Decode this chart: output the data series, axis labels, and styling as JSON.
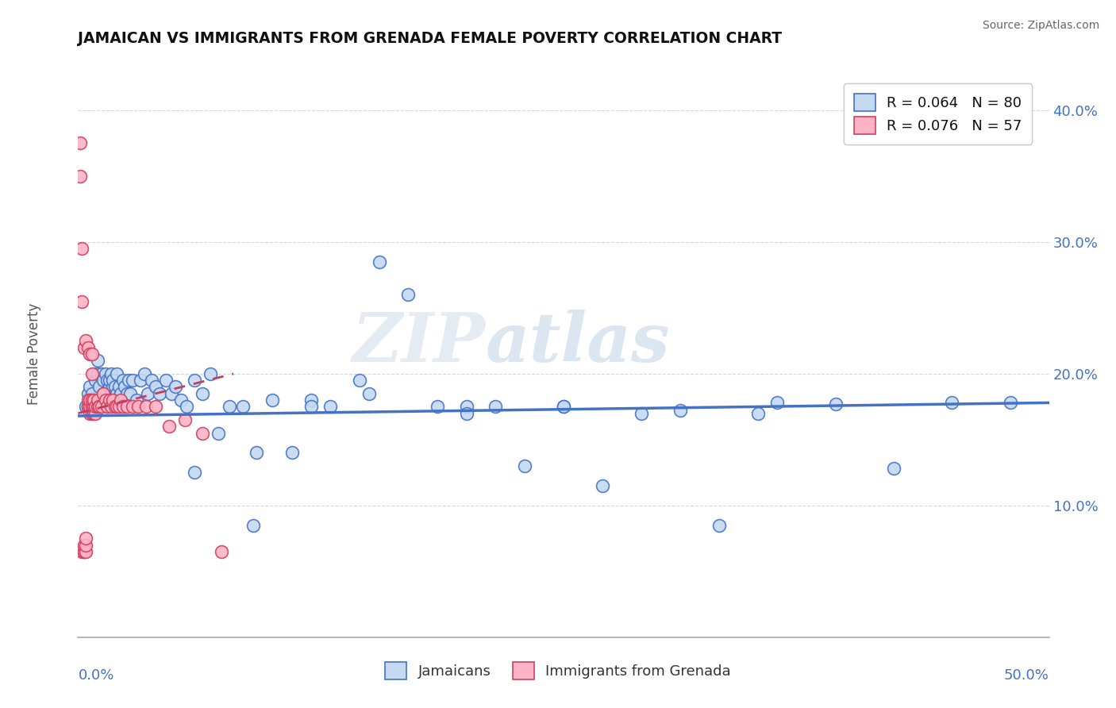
{
  "title": "JAMAICAN VS IMMIGRANTS FROM GRENADA FEMALE POVERTY CORRELATION CHART",
  "source": "Source: ZipAtlas.com",
  "ylabel": "Female Poverty",
  "ytick_labels": [
    "10.0%",
    "20.0%",
    "30.0%",
    "40.0%"
  ],
  "ytick_values": [
    0.1,
    0.2,
    0.3,
    0.4
  ],
  "xlim": [
    0.0,
    0.5
  ],
  "ylim": [
    0.0,
    0.43
  ],
  "legend_r1": "R = 0.064",
  "legend_n1": "N = 80",
  "legend_r2": "R = 0.076",
  "legend_n2": "N = 57",
  "series1_color": "#c5d9f1",
  "series1_edge": "#4472c4",
  "series2_color": "#ffb3c6",
  "series2_edge": "#d04060",
  "trendline1_color": "#4472c4",
  "trendline2_color": "#c04060",
  "watermark_zip": "ZIP",
  "watermark_atlas": "atlas",
  "jamaicans_x": [
    0.004,
    0.005,
    0.006,
    0.007,
    0.008,
    0.009,
    0.01,
    0.01,
    0.011,
    0.012,
    0.013,
    0.013,
    0.014,
    0.015,
    0.015,
    0.016,
    0.016,
    0.017,
    0.017,
    0.018,
    0.018,
    0.019,
    0.019,
    0.02,
    0.02,
    0.021,
    0.022,
    0.023,
    0.024,
    0.025,
    0.026,
    0.027,
    0.028,
    0.03,
    0.032,
    0.034,
    0.036,
    0.038,
    0.04,
    0.042,
    0.045,
    0.048,
    0.05,
    0.053,
    0.056,
    0.06,
    0.064,
    0.068,
    0.072,
    0.078,
    0.085,
    0.092,
    0.1,
    0.11,
    0.12,
    0.13,
    0.145,
    0.155,
    0.17,
    0.185,
    0.2,
    0.215,
    0.23,
    0.25,
    0.27,
    0.29,
    0.31,
    0.33,
    0.36,
    0.39,
    0.42,
    0.45,
    0.48,
    0.35,
    0.25,
    0.2,
    0.15,
    0.12,
    0.09,
    0.06
  ],
  "jamaicans_y": [
    0.175,
    0.185,
    0.19,
    0.185,
    0.2,
    0.195,
    0.2,
    0.21,
    0.19,
    0.2,
    0.195,
    0.185,
    0.2,
    0.195,
    0.175,
    0.19,
    0.195,
    0.185,
    0.2,
    0.19,
    0.195,
    0.185,
    0.19,
    0.185,
    0.2,
    0.19,
    0.185,
    0.195,
    0.19,
    0.185,
    0.195,
    0.185,
    0.195,
    0.18,
    0.195,
    0.2,
    0.185,
    0.195,
    0.19,
    0.185,
    0.195,
    0.185,
    0.19,
    0.18,
    0.175,
    0.195,
    0.185,
    0.2,
    0.155,
    0.175,
    0.175,
    0.14,
    0.18,
    0.14,
    0.18,
    0.175,
    0.195,
    0.285,
    0.26,
    0.175,
    0.175,
    0.175,
    0.13,
    0.175,
    0.115,
    0.17,
    0.172,
    0.085,
    0.178,
    0.177,
    0.128,
    0.178,
    0.178,
    0.17,
    0.175,
    0.17,
    0.185,
    0.175,
    0.085,
    0.125
  ],
  "grenada_x": [
    0.001,
    0.001,
    0.002,
    0.002,
    0.002,
    0.003,
    0.003,
    0.003,
    0.004,
    0.004,
    0.004,
    0.005,
    0.005,
    0.005,
    0.005,
    0.006,
    0.006,
    0.006,
    0.007,
    0.007,
    0.007,
    0.007,
    0.008,
    0.008,
    0.008,
    0.009,
    0.009,
    0.01,
    0.01,
    0.011,
    0.011,
    0.012,
    0.013,
    0.014,
    0.015,
    0.016,
    0.017,
    0.018,
    0.019,
    0.02,
    0.021,
    0.022,
    0.023,
    0.025,
    0.028,
    0.031,
    0.035,
    0.04,
    0.047,
    0.055,
    0.064,
    0.074,
    0.003,
    0.004,
    0.005,
    0.006,
    0.007
  ],
  "grenada_y": [
    0.375,
    0.35,
    0.295,
    0.255,
    0.065,
    0.065,
    0.065,
    0.07,
    0.065,
    0.07,
    0.075,
    0.175,
    0.175,
    0.175,
    0.18,
    0.17,
    0.175,
    0.18,
    0.17,
    0.175,
    0.18,
    0.2,
    0.17,
    0.175,
    0.18,
    0.17,
    0.175,
    0.175,
    0.18,
    0.175,
    0.175,
    0.175,
    0.185,
    0.18,
    0.175,
    0.18,
    0.175,
    0.18,
    0.175,
    0.175,
    0.175,
    0.18,
    0.175,
    0.175,
    0.175,
    0.175,
    0.175,
    0.175,
    0.16,
    0.165,
    0.155,
    0.065,
    0.22,
    0.225,
    0.22,
    0.215,
    0.215
  ],
  "trendline1_x0": 0.0,
  "trendline1_y0": 0.168,
  "trendline1_x1": 0.5,
  "trendline1_y1": 0.178,
  "trendline2_x0": 0.0,
  "trendline2_y0": 0.17,
  "trendline2_x1": 0.08,
  "trendline2_y1": 0.2
}
